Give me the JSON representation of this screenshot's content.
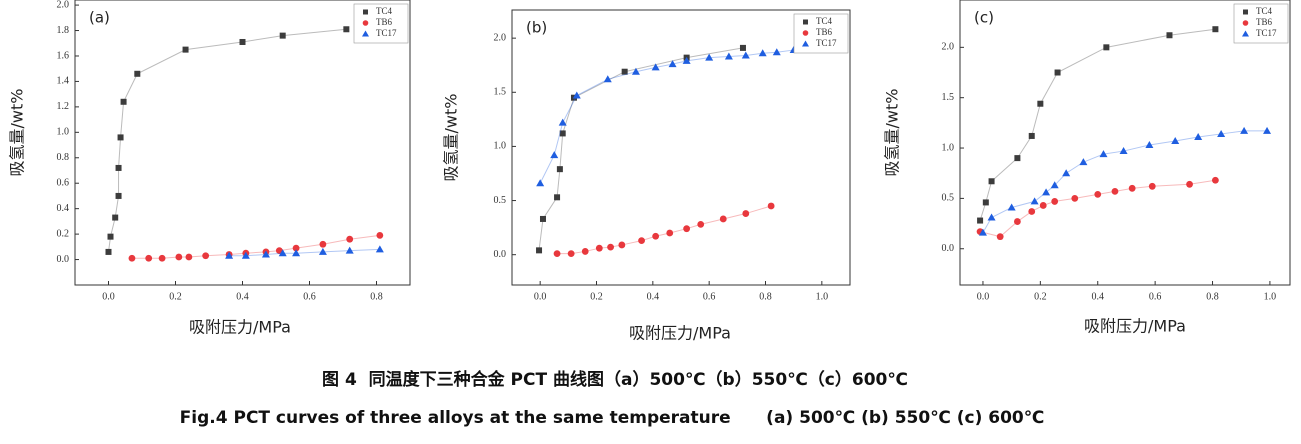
{
  "chart_data": [
    {
      "type": "line",
      "annotation": "(a)",
      "x_label": "吸附压力/MPa",
      "y_label": "吸氢量/wt%",
      "xlim": [
        -0.1,
        0.9
      ],
      "ylim": [
        -0.2,
        2.04
      ],
      "xticks": [
        {
          "value": 0,
          "label": "0.0"
        },
        0.2,
        0.4,
        0.6,
        0.8
      ],
      "yticks": [
        {
          "value": 0,
          "label": "0.0"
        },
        0.2,
        0.4,
        0.6,
        0.8,
        {
          "value": 1,
          "label": "1.0"
        },
        1.2,
        1.4,
        1.6,
        1.8,
        {
          "value": 2,
          "label": "2.0"
        }
      ],
      "legend": "upper right",
      "series": [
        {
          "name": "TC4",
          "color": "#3c3c3c",
          "marker": "square",
          "x": [
            0.0,
            0.006,
            0.02,
            0.03,
            0.03,
            0.036,
            0.045,
            0.086,
            0.23,
            0.4,
            0.52,
            0.71
          ],
          "values": [
            0.06,
            0.18,
            0.33,
            0.5,
            0.72,
            0.96,
            1.24,
            1.46,
            1.65,
            1.71,
            1.76,
            1.81
          ]
        },
        {
          "name": "TB6",
          "color": "#e8383d",
          "marker": "circle",
          "x": [
            0.07,
            0.12,
            0.16,
            0.21,
            0.24,
            0.29,
            0.36,
            0.41,
            0.47,
            0.51,
            0.56,
            0.64,
            0.72,
            0.81
          ],
          "values": [
            0.01,
            0.01,
            0.01,
            0.02,
            0.02,
            0.03,
            0.04,
            0.05,
            0.06,
            0.07,
            0.09,
            0.12,
            0.16,
            0.19
          ]
        },
        {
          "name": "TC17",
          "color": "#1f5ee0",
          "marker": "triangle",
          "x": [
            0.36,
            0.41,
            0.47,
            0.52,
            0.56,
            0.64,
            0.72,
            0.81
          ],
          "values": [
            0.03,
            0.03,
            0.04,
            0.05,
            0.05,
            0.06,
            0.07,
            0.08
          ]
        }
      ]
    },
    {
      "type": "line",
      "annotation": "(b)",
      "x_label": "吸附压力/MPa",
      "y_label": "吸氢量/wt%",
      "xlim": [
        -0.1,
        1.1
      ],
      "ylim": [
        -0.28,
        2.26
      ],
      "xticks": [
        {
          "value": 0,
          "label": "0.0"
        },
        0.2,
        0.4,
        0.6,
        0.8,
        {
          "value": 1,
          "label": "1.0"
        }
      ],
      "yticks": [
        {
          "value": 0,
          "label": "0.0"
        },
        0.5,
        {
          "value": 1,
          "label": "1.0"
        },
        1.5,
        {
          "value": 2,
          "label": "2.0"
        }
      ],
      "legend": "upper right",
      "series": [
        {
          "name": "TC4",
          "color": "#3c3c3c",
          "marker": "square",
          "x": [
            -0.004,
            0.01,
            0.06,
            0.07,
            0.08,
            0.12,
            0.3,
            0.52,
            0.72
          ],
          "values": [
            0.04,
            0.33,
            0.53,
            0.79,
            1.12,
            1.45,
            1.69,
            1.82,
            1.91
          ]
        },
        {
          "name": "TB6",
          "color": "#e8383d",
          "marker": "circle",
          "x": [
            0.06,
            0.11,
            0.16,
            0.21,
            0.25,
            0.29,
            0.36,
            0.41,
            0.46,
            0.52,
            0.57,
            0.65,
            0.73,
            0.82
          ],
          "values": [
            0.01,
            0.01,
            0.03,
            0.06,
            0.07,
            0.09,
            0.13,
            0.17,
            0.2,
            0.24,
            0.28,
            0.33,
            0.38,
            0.45
          ]
        },
        {
          "name": "TC17",
          "color": "#1f5ee0",
          "marker": "triangle",
          "x": [
            0.0,
            0.05,
            0.08,
            0.13,
            0.24,
            0.34,
            0.41,
            0.47,
            0.52,
            0.6,
            0.67,
            0.73,
            0.79,
            0.84,
            0.9
          ],
          "values": [
            0.66,
            0.92,
            1.22,
            1.47,
            1.62,
            1.69,
            1.73,
            1.76,
            1.79,
            1.82,
            1.83,
            1.84,
            1.86,
            1.87,
            1.89
          ]
        }
      ]
    },
    {
      "type": "line",
      "annotation": "(c)",
      "x_label": "吸附压力/MPa",
      "y_label": "吸氢量/wt%",
      "xlim": [
        -0.08,
        1.07
      ],
      "ylim": [
        -0.36,
        2.47
      ],
      "xticks": [
        {
          "value": 0,
          "label": "0.0"
        },
        0.2,
        0.4,
        0.6,
        0.8,
        {
          "value": 1,
          "label": "1.0"
        }
      ],
      "yticks": [
        {
          "value": 0,
          "label": "0.0"
        },
        0.5,
        {
          "value": 1,
          "label": "1.0"
        },
        1.5,
        {
          "value": 2,
          "label": "2.0"
        }
      ],
      "legend": "upper right",
      "series": [
        {
          "name": "TC4",
          "color": "#3c3c3c",
          "marker": "square",
          "x": [
            -0.01,
            0.01,
            0.03,
            0.12,
            0.17,
            0.2,
            0.26,
            0.43,
            0.65,
            0.81
          ],
          "values": [
            0.28,
            0.46,
            0.67,
            0.9,
            1.12,
            1.44,
            1.75,
            2.0,
            2.12,
            2.18
          ]
        },
        {
          "name": "TB6",
          "color": "#e8383d",
          "marker": "circle",
          "x": [
            -0.01,
            0.06,
            0.12,
            0.17,
            0.21,
            0.25,
            0.32,
            0.4,
            0.46,
            0.52,
            0.59,
            0.72,
            0.81
          ],
          "values": [
            0.17,
            0.12,
            0.27,
            0.37,
            0.43,
            0.47,
            0.5,
            0.54,
            0.57,
            0.6,
            0.62,
            0.64,
            0.68
          ]
        },
        {
          "name": "TC17",
          "color": "#1f5ee0",
          "marker": "triangle",
          "x": [
            0.0,
            0.03,
            0.1,
            0.18,
            0.22,
            0.25,
            0.29,
            0.35,
            0.42,
            0.49,
            0.58,
            0.67,
            0.75,
            0.83,
            0.91,
            0.99
          ],
          "values": [
            0.16,
            0.31,
            0.41,
            0.47,
            0.56,
            0.63,
            0.75,
            0.86,
            0.94,
            0.97,
            1.03,
            1.07,
            1.11,
            1.14,
            1.17,
            1.17
          ]
        }
      ]
    }
  ],
  "caption": {
    "cn": "图 4  同温度下三种合金 PCT 曲线图（a）500℃（b）550℃（c）600℃",
    "en": "Fig.4 PCT curves of three alloys at the same temperature      (a) 500℃ (b) 550℃ (c) 600℃"
  }
}
